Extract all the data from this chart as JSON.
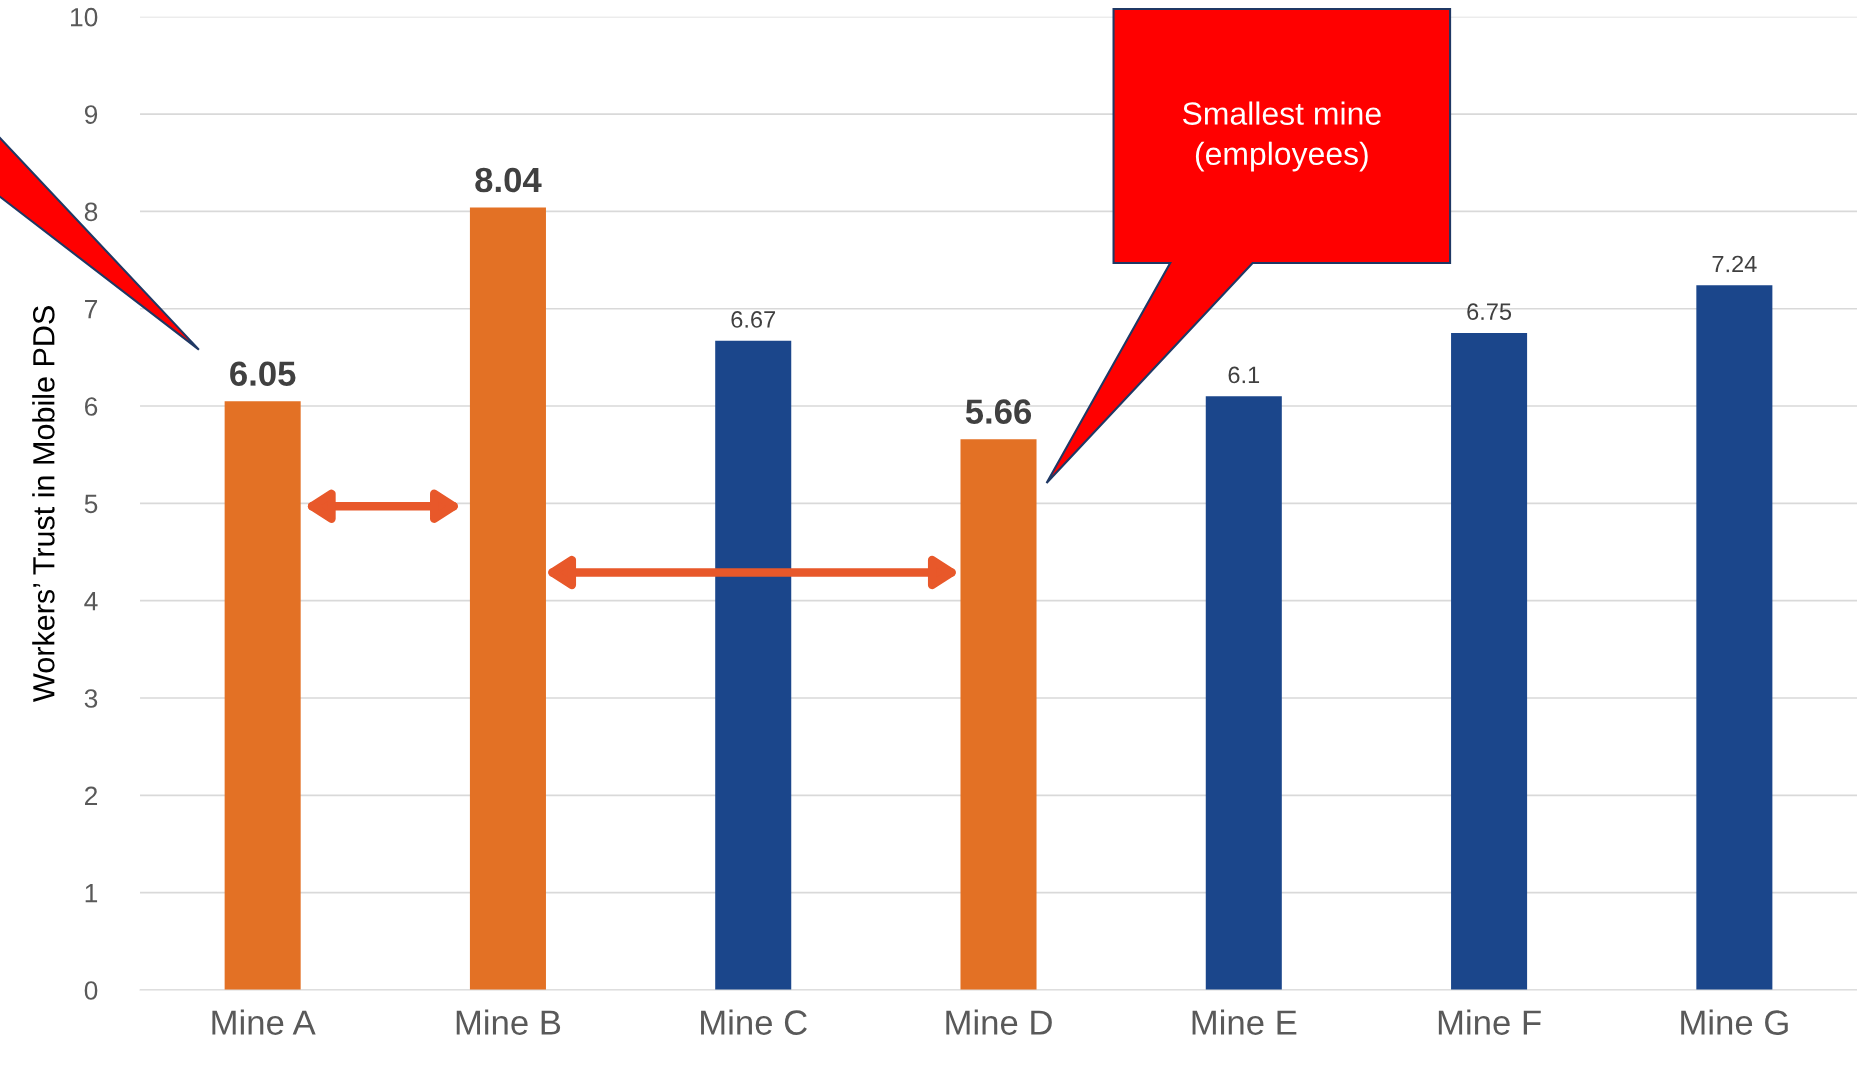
{
  "chart_data": {
    "type": "bar",
    "ylabel": "Workers’ Trust in Mobile PDS",
    "categories": [
      "Mine A",
      "Mine B",
      "Mine C",
      "Mine D",
      "Mine E",
      "Mine F",
      "Mine G"
    ],
    "values": [
      6.05,
      8.04,
      6.67,
      5.66,
      6.1,
      6.75,
      7.24
    ],
    "colors": [
      "#e37125",
      "#e37125",
      "#1b468b",
      "#e37125",
      "#1b468b",
      "#1b468b",
      "#1b468b"
    ],
    "ylim": [
      0,
      10
    ],
    "yticks": [
      0,
      1,
      2,
      3,
      4,
      5,
      6,
      7,
      8,
      9,
      10
    ],
    "grid": "y",
    "data_labels": true,
    "annotations": [
      "Smallest mine\n(employees)"
    ]
  }
}
